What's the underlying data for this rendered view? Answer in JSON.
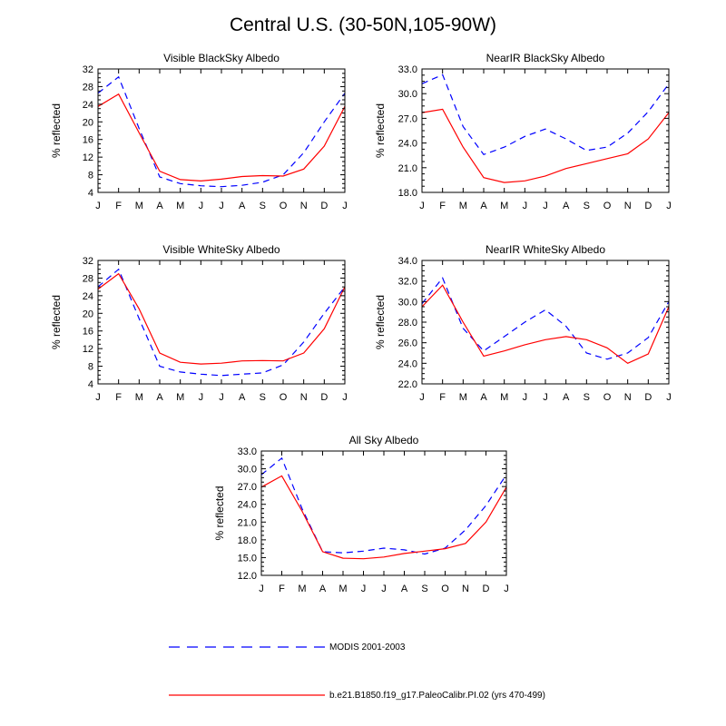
{
  "figure": {
    "title": "Central U.S. (30-50N,105-90W)"
  },
  "legend": [
    {
      "label": "MODIS 2001-2003",
      "color": "#0000ff",
      "dash": true
    },
    {
      "label": "b.e21.B1850.f19_g17.PaleoCalibr.PI.02 (yrs 470-499)",
      "color": "#ff0000",
      "dash": false
    }
  ],
  "chart_data": [
    {
      "type": "line",
      "title": "Visible BlackSky Albedo",
      "xlabel": "",
      "ylabel": "% reflected",
      "categories": [
        "J",
        "F",
        "M",
        "A",
        "M",
        "J",
        "J",
        "A",
        "S",
        "O",
        "N",
        "D",
        "J"
      ],
      "ylim": [
        4,
        32
      ],
      "yticks": [
        "4",
        "8",
        "12",
        "16",
        "20",
        "24",
        "28",
        "32"
      ],
      "series": [
        {
          "name": "MODIS 2001-2003",
          "values": [
            26.5,
            30.2,
            18.5,
            7.5,
            6.0,
            5.5,
            5.3,
            5.6,
            6.3,
            8.0,
            13.0,
            20.0,
            26.5
          ]
        },
        {
          "name": "b.e21.B1850.f19_g17.PaleoCalibr.PI.02 (yrs 470-499)",
          "values": [
            23.5,
            26.3,
            17.5,
            8.8,
            6.9,
            6.6,
            7.0,
            7.6,
            7.8,
            7.7,
            9.3,
            14.5,
            23.5
          ]
        }
      ]
    },
    {
      "type": "line",
      "title": "NearIR BlackSky Albedo",
      "xlabel": "",
      "ylabel": "% reflected",
      "categories": [
        "J",
        "F",
        "M",
        "A",
        "M",
        "J",
        "J",
        "A",
        "S",
        "O",
        "N",
        "D",
        "J"
      ],
      "ylim": [
        18,
        33
      ],
      "yticks": [
        "18.0",
        "21.0",
        "24.0",
        "27.0",
        "30.0",
        "33.0"
      ],
      "series": [
        {
          "name": "MODIS 2001-2003",
          "values": [
            31.2,
            32.3,
            26.0,
            22.6,
            23.5,
            24.8,
            25.7,
            24.5,
            23.1,
            23.5,
            25.2,
            27.8,
            31.2
          ]
        },
        {
          "name": "b.e21.B1850.f19_g17.PaleoCalibr.PI.02 (yrs 470-499)",
          "values": [
            27.7,
            28.1,
            23.5,
            19.8,
            19.2,
            19.4,
            20.0,
            20.9,
            21.5,
            22.1,
            22.7,
            24.5,
            27.7
          ]
        }
      ]
    },
    {
      "type": "line",
      "title": "Visible WhiteSky Albedo",
      "xlabel": "",
      "ylabel": "% reflected",
      "categories": [
        "J",
        "F",
        "M",
        "A",
        "M",
        "J",
        "J",
        "A",
        "S",
        "O",
        "N",
        "D",
        "J"
      ],
      "ylim": [
        4,
        32
      ],
      "yticks": [
        "4",
        "8",
        "12",
        "16",
        "20",
        "24",
        "28",
        "32"
      ],
      "series": [
        {
          "name": "MODIS 2001-2003",
          "values": [
            26.0,
            30.0,
            18.8,
            8.0,
            6.7,
            6.2,
            5.9,
            6.2,
            6.5,
            8.3,
            13.5,
            20.0,
            26.0
          ]
        },
        {
          "name": "b.e21.B1850.f19_g17.PaleoCalibr.PI.02 (yrs 470-499)",
          "values": [
            25.5,
            29.0,
            21.0,
            11.0,
            8.9,
            8.5,
            8.7,
            9.2,
            9.3,
            9.2,
            11.0,
            16.5,
            26.0
          ]
        }
      ]
    },
    {
      "type": "line",
      "title": "NearIR WhiteSky Albedo",
      "xlabel": "",
      "ylabel": "% reflected",
      "categories": [
        "J",
        "F",
        "M",
        "A",
        "M",
        "J",
        "J",
        "A",
        "S",
        "O",
        "N",
        "D",
        "J"
      ],
      "ylim": [
        22,
        34
      ],
      "yticks": [
        "22.0",
        "24.0",
        "26.0",
        "28.0",
        "30.0",
        "32.0",
        "34.0"
      ],
      "series": [
        {
          "name": "MODIS 2001-2003",
          "values": [
            29.8,
            32.3,
            27.4,
            25.2,
            26.6,
            28.0,
            29.2,
            27.6,
            25.0,
            24.4,
            25.0,
            26.5,
            30.0
          ]
        },
        {
          "name": "b.e21.B1850.f19_g17.PaleoCalibr.PI.02 (yrs 470-499)",
          "values": [
            29.5,
            31.6,
            28.0,
            24.7,
            25.2,
            25.8,
            26.3,
            26.6,
            26.3,
            25.5,
            24.0,
            24.9,
            29.5
          ]
        }
      ]
    },
    {
      "type": "line",
      "title": "All Sky Albedo",
      "xlabel": "",
      "ylabel": "% reflected",
      "categories": [
        "J",
        "F",
        "M",
        "A",
        "M",
        "J",
        "J",
        "A",
        "S",
        "O",
        "N",
        "D",
        "J"
      ],
      "ylim": [
        12,
        33
      ],
      "yticks": [
        "12.0",
        "15.0",
        "18.0",
        "21.0",
        "24.0",
        "27.0",
        "30.0",
        "33.0"
      ],
      "series": [
        {
          "name": "MODIS 2001-2003",
          "values": [
            29.0,
            31.8,
            23.2,
            16.0,
            15.8,
            16.1,
            16.6,
            16.3,
            15.6,
            16.6,
            19.7,
            23.8,
            29.0
          ]
        },
        {
          "name": "b.e21.B1850.f19_g17.PaleoCalibr.PI.02 (yrs 470-499)",
          "values": [
            26.9,
            28.8,
            22.8,
            16.0,
            14.9,
            14.8,
            15.1,
            15.7,
            16.1,
            16.5,
            17.4,
            21.0,
            26.9
          ]
        }
      ]
    }
  ]
}
